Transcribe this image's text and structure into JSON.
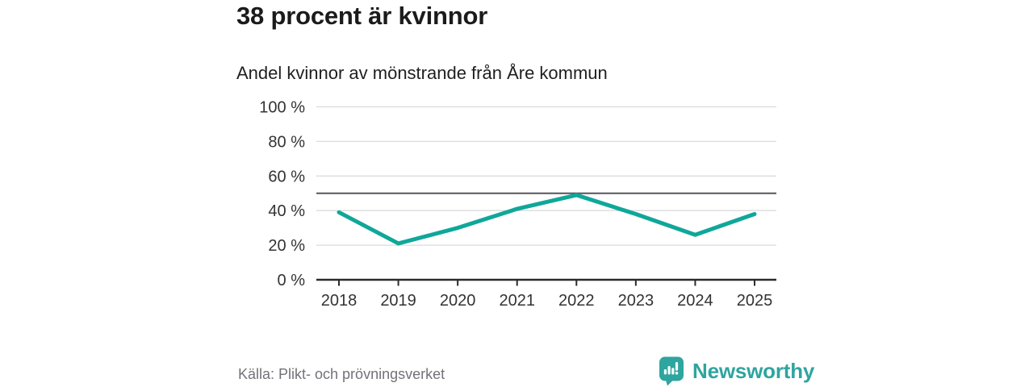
{
  "header": {
    "title": "38 procent är kvinnor",
    "subtitle": "Andel kvinnor av mönstrande från Åre kommun"
  },
  "chart_data": {
    "type": "line",
    "title": "Andel kvinnor av mönstrande från Åre kommun",
    "categories": [
      "2018",
      "2019",
      "2020",
      "2021",
      "2022",
      "2023",
      "2024",
      "2025"
    ],
    "values": [
      39,
      21,
      30,
      41,
      49,
      38,
      26,
      38
    ],
    "unit": "%",
    "xlabel": "",
    "ylabel": "",
    "ylim": [
      0,
      100
    ],
    "y_ticks": [
      0,
      20,
      40,
      60,
      80,
      100
    ],
    "y_tick_suffix": " %",
    "reference_line": 50,
    "grid": true,
    "legend_position": "none",
    "colors": {
      "line": "#10A79A",
      "grid": "#DBDBDB",
      "axis": "#2B2B2B",
      "reference": "#55555C",
      "tick_label": "#333333"
    }
  },
  "footer": {
    "source": "Källa: Plikt- och prövningsverket",
    "brand": "Newsworthy",
    "brand_color": "#2EA59E",
    "icons": {
      "logo": "bar-chart-speech-bubble-icon"
    }
  }
}
